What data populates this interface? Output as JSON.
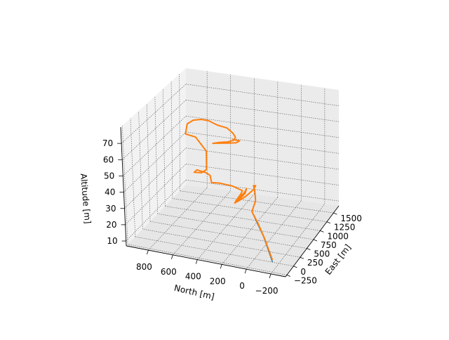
{
  "chart_data": {
    "type": "line3d",
    "title": "",
    "axes": {
      "east": {
        "label": "East [m]",
        "ticks": [
          -250,
          0,
          250,
          500,
          750,
          1000,
          1250,
          1500
        ],
        "range": [
          -300,
          1700
        ]
      },
      "north": {
        "label": "North [m]",
        "ticks": [
          -200,
          0,
          200,
          400,
          600,
          800
        ],
        "range": [
          -320,
          980
        ]
      },
      "alt": {
        "label": "Altitude [m]",
        "ticks": [
          10,
          20,
          30,
          40,
          50,
          60,
          70
        ],
        "range": [
          7,
          80
        ]
      }
    },
    "grid": true,
    "series": [
      {
        "color": "#1f77b4",
        "points": [
          [
            120,
            -120,
            5
          ],
          [
            140,
            -40,
            16
          ],
          [
            160,
            60,
            27
          ]
        ]
      },
      {
        "color": "#ff7f0e",
        "points": [
          [
            122,
            -118,
            6
          ],
          [
            138,
            -50,
            15
          ],
          [
            150,
            10,
            22
          ],
          [
            160,
            60,
            27
          ],
          [
            200,
            40,
            32
          ],
          [
            260,
            60,
            36
          ],
          [
            300,
            80,
            38
          ],
          [
            380,
            80,
            37
          ],
          [
            420,
            110,
            34
          ],
          [
            380,
            160,
            31
          ],
          [
            300,
            190,
            30
          ],
          [
            230,
            200,
            30
          ],
          [
            210,
            170,
            33
          ],
          [
            250,
            140,
            35
          ],
          [
            320,
            140,
            36
          ],
          [
            360,
            160,
            33
          ],
          [
            330,
            200,
            30
          ],
          [
            250,
            220,
            29
          ],
          [
            210,
            200,
            31
          ],
          [
            240,
            170,
            34
          ],
          [
            300,
            170,
            35
          ],
          [
            300,
            250,
            37
          ],
          [
            300,
            350,
            38
          ],
          [
            300,
            420,
            38
          ],
          [
            360,
            440,
            39
          ],
          [
            420,
            460,
            40
          ],
          [
            440,
            500,
            41
          ],
          [
            440,
            560,
            42
          ],
          [
            390,
            560,
            43
          ],
          [
            300,
            560,
            43
          ],
          [
            300,
            500,
            43
          ],
          [
            300,
            460,
            45
          ],
          [
            300,
            460,
            48
          ],
          [
            300,
            460,
            51
          ],
          [
            300,
            460,
            54
          ],
          [
            300,
            460,
            55
          ],
          [
            360,
            560,
            62
          ],
          [
            600,
            700,
            60
          ],
          [
            900,
            760,
            61
          ],
          [
            1100,
            760,
            60
          ],
          [
            1200,
            720,
            59
          ],
          [
            1350,
            700,
            56
          ],
          [
            1450,
            650,
            52
          ],
          [
            1500,
            580,
            50
          ],
          [
            1460,
            520,
            48
          ],
          [
            1380,
            480,
            47
          ],
          [
            1280,
            470,
            47
          ],
          [
            1200,
            500,
            47
          ],
          [
            1150,
            560,
            47
          ],
          [
            1100,
            600,
            47
          ],
          [
            1060,
            560,
            48
          ],
          [
            1100,
            480,
            48
          ],
          [
            1200,
            430,
            47
          ],
          [
            1280,
            420,
            47
          ],
          [
            1300,
            480,
            47
          ]
        ]
      }
    ]
  }
}
